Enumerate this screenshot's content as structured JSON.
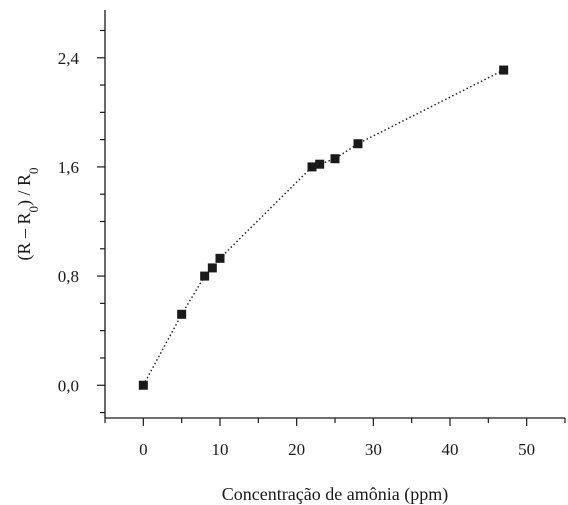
{
  "chart_data": {
    "type": "scatter",
    "xlabel": "Concentração de amônia (ppm)",
    "ylabel": {
      "lead": "(R – R",
      "sub1": "0",
      "mid": ") / R",
      "sub2": "0"
    },
    "xlim": [
      -5,
      55
    ],
    "ylim": [
      -0.24,
      2.75
    ],
    "x_ticks": [
      0,
      10,
      20,
      30,
      40,
      50
    ],
    "x_tick_labels": [
      "0",
      "10",
      "20",
      "30",
      "40",
      "50"
    ],
    "x_minor_ticks": [
      -5,
      5,
      15,
      25,
      35,
      45,
      55
    ],
    "y_ticks": [
      0,
      0.8,
      1.6,
      2.4
    ],
    "y_tick_labels": [
      "0,0",
      "0,8",
      "1,6",
      "2,4"
    ],
    "y_minor_ticks": [
      -0.2,
      0.2,
      0.4,
      0.6,
      1.0,
      1.2,
      1.4,
      1.8,
      2.0,
      2.2,
      2.6
    ],
    "grid": false,
    "marker": "square",
    "line_style": "dotted",
    "series": [
      {
        "x": [
          0,
          5,
          8,
          9,
          10,
          22,
          23,
          25,
          28,
          47
        ],
        "y": [
          0.0,
          0.52,
          0.8,
          0.86,
          0.93,
          1.6,
          1.62,
          1.66,
          1.77,
          2.31
        ]
      }
    ]
  }
}
